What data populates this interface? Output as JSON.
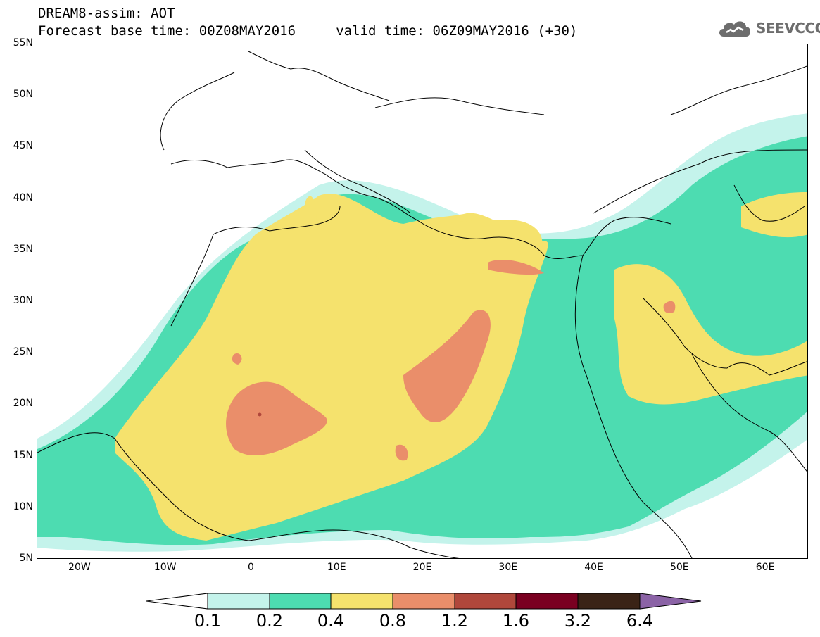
{
  "header": {
    "line1": "DREAM8-assim: AOT",
    "line2": "Forecast base time: 00Z08MAY2016     valid time: 06Z09MAY2016 (+30)",
    "logo_text": "SEEVCCC",
    "logo_icon": "cloud-icon"
  },
  "map": {
    "lat_labels": [
      "55N",
      "50N",
      "45N",
      "40N",
      "35N",
      "30N",
      "25N",
      "20N",
      "15N",
      "10N",
      "5N"
    ],
    "lat_values": [
      55,
      50,
      45,
      40,
      35,
      30,
      25,
      20,
      15,
      10,
      5
    ],
    "lon_labels": [
      "20W",
      "10W",
      "0",
      "10E",
      "20E",
      "30E",
      "40E",
      "50E",
      "60E"
    ],
    "lon_values": [
      -20,
      -10,
      0,
      10,
      20,
      30,
      40,
      50,
      60
    ],
    "lon_range": [
      -25,
      65
    ],
    "lat_range": [
      5,
      55
    ]
  },
  "colorbar": {
    "colors": [
      "#ffffff",
      "#c4f3eb",
      "#4ddcb1",
      "#f5e26d",
      "#ea8e6a",
      "#b0473b",
      "#7a0021",
      "#3a2316",
      "#8b63a6"
    ],
    "labels": [
      "0.1",
      "0.2",
      "0.4",
      "0.8",
      "1.2",
      "1.6",
      "3.2",
      "6.4"
    ]
  }
}
